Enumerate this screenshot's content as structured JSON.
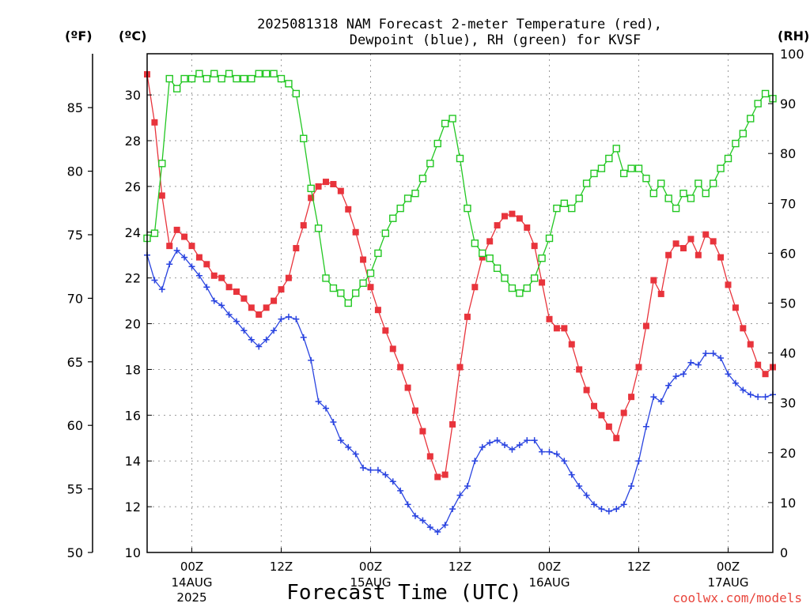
{
  "chart_data": {
    "type": "line",
    "title_line1": "2025081318 NAM Forecast 2-meter Temperature (red),",
    "title_line2": "Dewpoint (blue), RH (green) for KVSF",
    "left_outer_unit": "(ºF)",
    "left_inner_unit": "(ºC)",
    "right_unit": "(RH)",
    "xlabel": "Forecast Time (UTC)",
    "credit": "coolwx.com/models",
    "x_ticks": [
      {
        "hour": 6,
        "l1": "00Z",
        "l2": "14AUG",
        "l3": "2025"
      },
      {
        "hour": 18,
        "l1": "12Z",
        "l2": "",
        "l3": ""
      },
      {
        "hour": 30,
        "l1": "00Z",
        "l2": "15AUG",
        "l3": ""
      },
      {
        "hour": 42,
        "l1": "12Z",
        "l2": "",
        "l3": ""
      },
      {
        "hour": 54,
        "l1": "00Z",
        "l2": "16AUG",
        "l3": ""
      },
      {
        "hour": 66,
        "l1": "12Z",
        "l2": "",
        "l3": ""
      },
      {
        "hour": 78,
        "l1": "00Z",
        "l2": "17AUG",
        "l3": ""
      }
    ],
    "x_range_hours": [
      0,
      84
    ],
    "celsius_ticks": [
      10,
      12,
      14,
      16,
      18,
      20,
      22,
      24,
      26,
      28,
      30
    ],
    "celsius_range": [
      10,
      31.8
    ],
    "fahrenheit_ticks": [
      50,
      55,
      60,
      65,
      70,
      75,
      80,
      85
    ],
    "rh_ticks": [
      0,
      10,
      20,
      30,
      40,
      50,
      60,
      70,
      80,
      90,
      100
    ],
    "rh_range": [
      0,
      100
    ],
    "grid": true,
    "series": [
      {
        "name": "Temperature",
        "color": "#e8343c",
        "marker": "filled-square",
        "axis": "celsius",
        "values": [
          30.9,
          28.8,
          25.6,
          23.4,
          24.1,
          23.8,
          23.4,
          22.9,
          22.6,
          22.1,
          22.0,
          21.6,
          21.4,
          21.1,
          20.7,
          20.4,
          20.7,
          21.0,
          21.5,
          22.0,
          23.3,
          24.3,
          25.5,
          26.0,
          26.2,
          26.1,
          25.8,
          25.0,
          24.0,
          22.8,
          21.6,
          20.6,
          19.7,
          18.9,
          18.1,
          17.2,
          16.2,
          15.3,
          14.2,
          13.3,
          13.4,
          15.6,
          18.1,
          20.3,
          21.6,
          22.9,
          23.6,
          24.3,
          24.7,
          24.8,
          24.6,
          24.2,
          23.4,
          21.8,
          20.2,
          19.8,
          19.8,
          19.1,
          18.0,
          17.1,
          16.4,
          16.0,
          15.5,
          15.0,
          16.1,
          16.8,
          18.1,
          19.9,
          21.9,
          21.3,
          23.0,
          23.5,
          23.3,
          23.7,
          23.0,
          23.9,
          23.6,
          22.9,
          21.7,
          20.7,
          19.8,
          19.1,
          18.2,
          17.8,
          18.1
        ]
      },
      {
        "name": "Dewpoint",
        "color": "#2a44e0",
        "marker": "plus",
        "axis": "celsius",
        "values": [
          23.0,
          21.9,
          21.5,
          22.6,
          23.2,
          22.9,
          22.5,
          22.1,
          21.6,
          21.0,
          20.8,
          20.4,
          20.1,
          19.7,
          19.3,
          19.0,
          19.3,
          19.7,
          20.2,
          20.3,
          20.2,
          19.4,
          18.4,
          16.6,
          16.3,
          15.7,
          14.9,
          14.6,
          14.3,
          13.7,
          13.6,
          13.6,
          13.4,
          13.1,
          12.7,
          12.1,
          11.6,
          11.4,
          11.1,
          10.9,
          11.2,
          11.9,
          12.5,
          12.9,
          14.0,
          14.6,
          14.8,
          14.9,
          14.7,
          14.5,
          14.7,
          14.9,
          14.9,
          14.4,
          14.4,
          14.3,
          14.0,
          13.4,
          12.9,
          12.5,
          12.1,
          11.9,
          11.8,
          11.9,
          12.1,
          12.9,
          14.0,
          15.5,
          16.8,
          16.6,
          17.3,
          17.7,
          17.8,
          18.3,
          18.2,
          18.7,
          18.7,
          18.5,
          17.8,
          17.4,
          17.1,
          16.9,
          16.8,
          16.8,
          16.9
        ]
      },
      {
        "name": "RH",
        "color": "#22c722",
        "marker": "open-square",
        "axis": "rh",
        "values": [
          63,
          64,
          78,
          95,
          93,
          95,
          95,
          96,
          95,
          96,
          95,
          96,
          95,
          95,
          95,
          96,
          96,
          96,
          95,
          94,
          92,
          83,
          73,
          65,
          55,
          53,
          52,
          50,
          52,
          54,
          56,
          60,
          64,
          67,
          69,
          71,
          72,
          75,
          78,
          82,
          86,
          87,
          79,
          69,
          62,
          60,
          59,
          57,
          55,
          53,
          52,
          53,
          55,
          59,
          63,
          69,
          70,
          69,
          71,
          74,
          76,
          77,
          79,
          81,
          76,
          77,
          77,
          75,
          72,
          74,
          71,
          69,
          72,
          71,
          74,
          72,
          74,
          77,
          79,
          82,
          84,
          87,
          90,
          92,
          91
        ]
      }
    ]
  }
}
